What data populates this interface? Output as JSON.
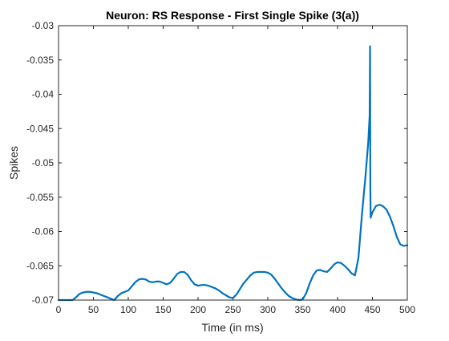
{
  "chart_data": {
    "type": "line",
    "title": "Neuron: RS Response - First Single Spike (3(a))",
    "xlabel": "Time (in ms)",
    "ylabel": "Spikes",
    "xlim": [
      0,
      500
    ],
    "ylim": [
      -0.07,
      -0.03
    ],
    "xticks": [
      0,
      50,
      100,
      150,
      200,
      250,
      300,
      350,
      400,
      450,
      500
    ],
    "yticks": [
      -0.07,
      -0.065,
      -0.06,
      -0.055,
      -0.05,
      -0.045,
      -0.04,
      -0.035,
      -0.03
    ],
    "xtick_labels": [
      "0",
      "50",
      "100",
      "150",
      "200",
      "250",
      "300",
      "350",
      "400",
      "450",
      "500"
    ],
    "ytick_labels": [
      "-0.07",
      "-0.065",
      "-0.06",
      "-0.055",
      "-0.05",
      "-0.045",
      "-0.04",
      "-0.035",
      "-0.03"
    ],
    "grid": false,
    "line_color": "#0072bd",
    "series": [
      {
        "x": [
          0,
          10,
          20,
          25,
          30,
          35,
          40,
          45,
          50,
          55,
          60,
          65,
          70,
          75,
          80,
          85,
          90,
          95,
          100,
          105,
          110,
          115,
          120,
          125,
          130,
          135,
          140,
          145,
          150,
          155,
          160,
          165,
          170,
          175,
          180,
          185,
          190,
          195,
          200,
          205,
          210,
          215,
          220,
          225,
          230,
          235,
          240,
          245,
          250,
          255,
          260,
          265,
          270,
          275,
          280,
          285,
          290,
          295,
          300,
          305,
          310,
          315,
          320,
          325,
          330,
          335,
          340,
          345,
          350,
          355,
          360,
          365,
          370,
          375,
          380,
          385,
          390,
          395,
          400,
          405,
          410,
          415,
          420,
          425,
          430,
          435,
          440,
          444,
          446,
          446.6,
          447,
          447.5,
          448,
          450,
          455,
          460,
          465,
          470,
          475,
          480,
          485,
          490,
          495,
          500
        ],
        "values": [
          -0.07,
          -0.07,
          -0.07,
          -0.0696,
          -0.0691,
          -0.0689,
          -0.0688,
          -0.0688,
          -0.0689,
          -0.069,
          -0.0692,
          -0.0694,
          -0.0696,
          -0.0698,
          -0.07,
          -0.0694,
          -0.069,
          -0.0688,
          -0.0686,
          -0.068,
          -0.0674,
          -0.067,
          -0.0669,
          -0.067,
          -0.0673,
          -0.0674,
          -0.0673,
          -0.0673,
          -0.0675,
          -0.0677,
          -0.0675,
          -0.0669,
          -0.0662,
          -0.0659,
          -0.0659,
          -0.0663,
          -0.0671,
          -0.0677,
          -0.0679,
          -0.0678,
          -0.0678,
          -0.0679,
          -0.0681,
          -0.0683,
          -0.0686,
          -0.069,
          -0.0693,
          -0.0696,
          -0.0697,
          -0.0692,
          -0.0684,
          -0.0676,
          -0.067,
          -0.0664,
          -0.066,
          -0.0659,
          -0.0659,
          -0.0659,
          -0.066,
          -0.0663,
          -0.0669,
          -0.0676,
          -0.0683,
          -0.0689,
          -0.0694,
          -0.0697,
          -0.0699,
          -0.07,
          -0.0699,
          -0.069,
          -0.0676,
          -0.0664,
          -0.0657,
          -0.0656,
          -0.0658,
          -0.0659,
          -0.0654,
          -0.0648,
          -0.0645,
          -0.0646,
          -0.065,
          -0.0655,
          -0.0661,
          -0.0664,
          -0.0638,
          -0.0575,
          -0.052,
          -0.047,
          -0.0432,
          -0.033,
          -0.0534,
          -0.058,
          -0.0578,
          -0.0572,
          -0.0563,
          -0.0561,
          -0.0563,
          -0.0568,
          -0.0578,
          -0.0592,
          -0.0608,
          -0.0619,
          -0.0621,
          -0.062
        ]
      }
    ]
  }
}
